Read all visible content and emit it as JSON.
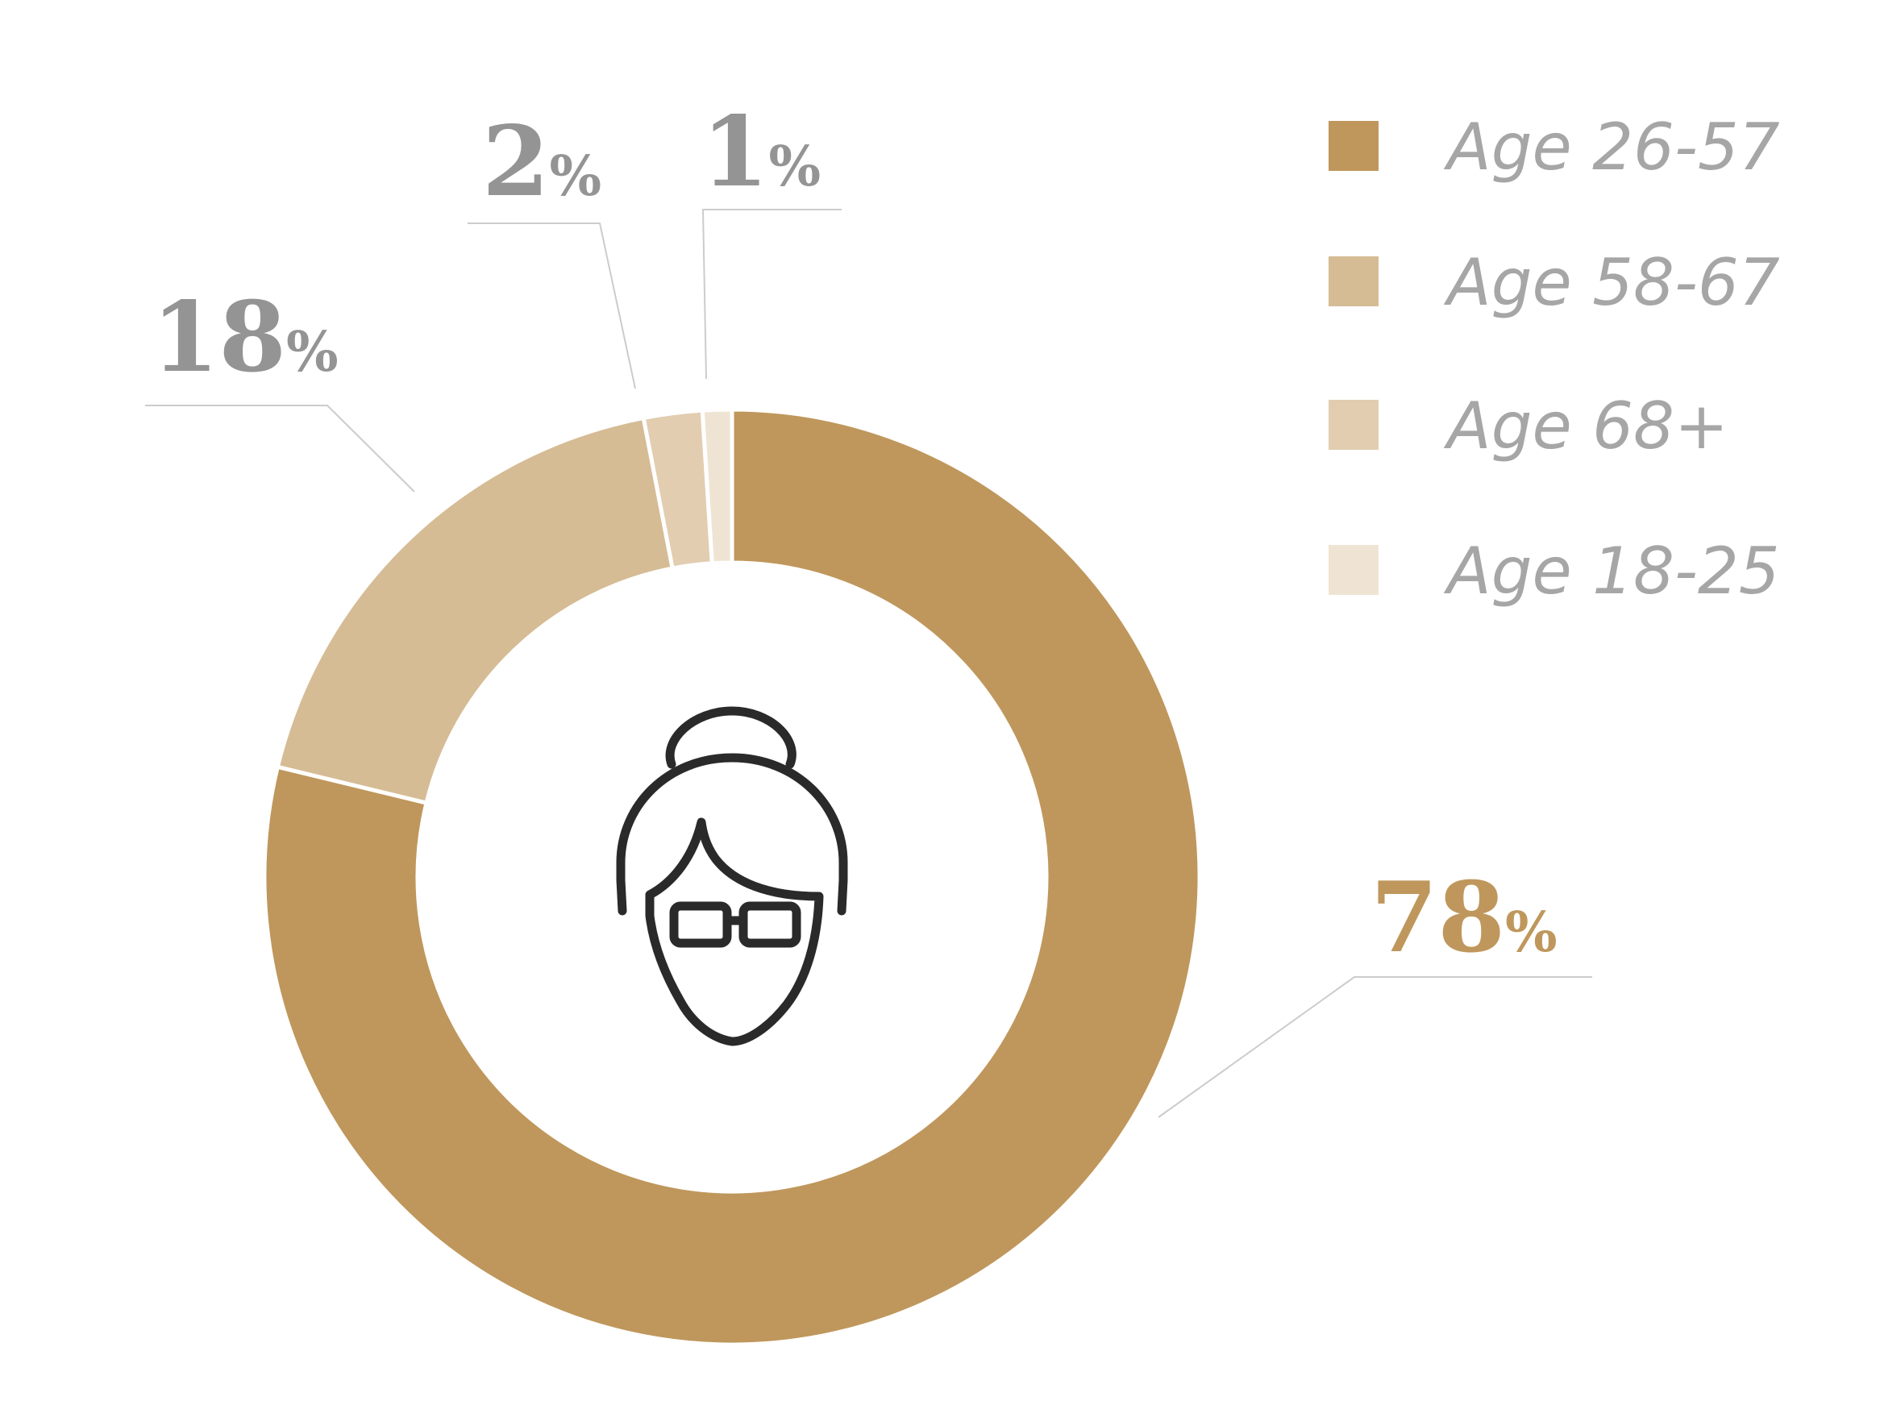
{
  "chart_data": {
    "type": "pie",
    "variant": "donut",
    "slices": [
      {
        "label": "Age 26-57",
        "value": 78,
        "text": "78",
        "color": "#bf975c",
        "label_color": "#bf975c"
      },
      {
        "label": "Age 58-67",
        "value": 18,
        "text": "18",
        "color": "#d5bc95",
        "label_color": "#949494"
      },
      {
        "label": "Age 68+",
        "value": 2,
        "text": "2",
        "color": "#e2cdb0",
        "label_color": "#949494"
      },
      {
        "label": "Age 18-25",
        "value": 1,
        "text": "1",
        "color": "#efe4d4",
        "label_color": "#949494"
      }
    ],
    "percent_symbol": "%",
    "legend_position": "top-right",
    "center_icon": "elderly-woman-with-glasses-icon"
  },
  "legend": [
    {
      "label": "Age 26-57",
      "color": "#bf975c"
    },
    {
      "label": "Age 58-67",
      "color": "#d5bc95"
    },
    {
      "label": "Age 68+",
      "color": "#e2cdb0"
    },
    {
      "label": "Age 18-25",
      "color": "#efe4d4"
    }
  ]
}
